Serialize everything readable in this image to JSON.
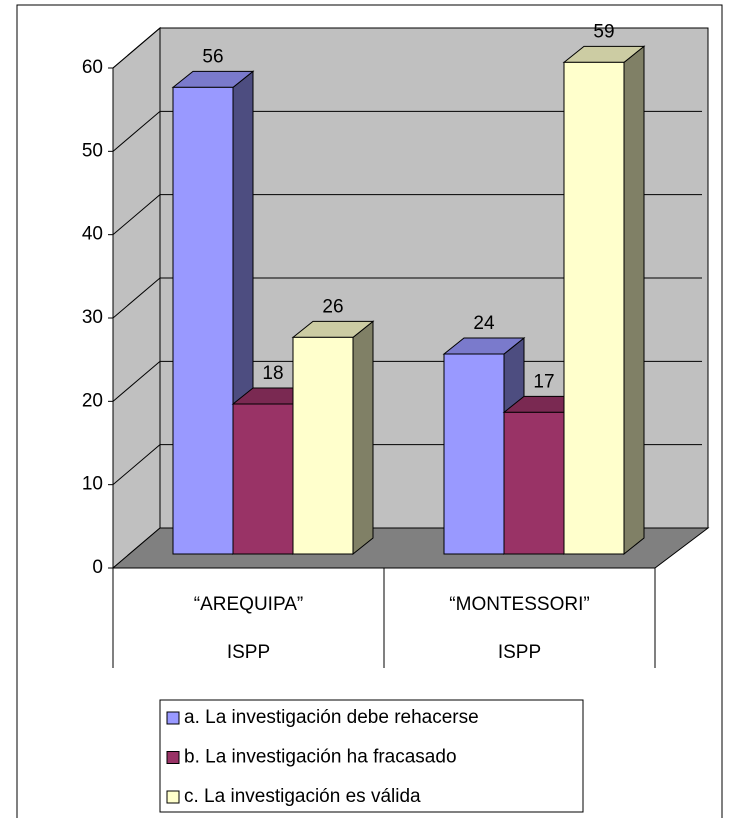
{
  "chart_data": {
    "type": "bar3d",
    "categories": [
      [
        "“AREQUIPA”",
        "ISPP"
      ],
      [
        "“MONTESSORI”",
        "ISPP"
      ]
    ],
    "series": [
      {
        "name": "a. La investigación debe rehacerse",
        "color": "#9999ff",
        "values": [
          56,
          24
        ]
      },
      {
        "name": "b. La investigación ha fracasado",
        "color": "#993366",
        "values": [
          18,
          17
        ]
      },
      {
        "name": "c. La investigación es válida",
        "color": "#ffffcc",
        "values": [
          26,
          59
        ]
      }
    ],
    "ylim": [
      0,
      60
    ],
    "yticks": [
      0,
      10,
      20,
      30,
      40,
      50,
      60
    ],
    "grid": true,
    "legend": "bottom"
  }
}
